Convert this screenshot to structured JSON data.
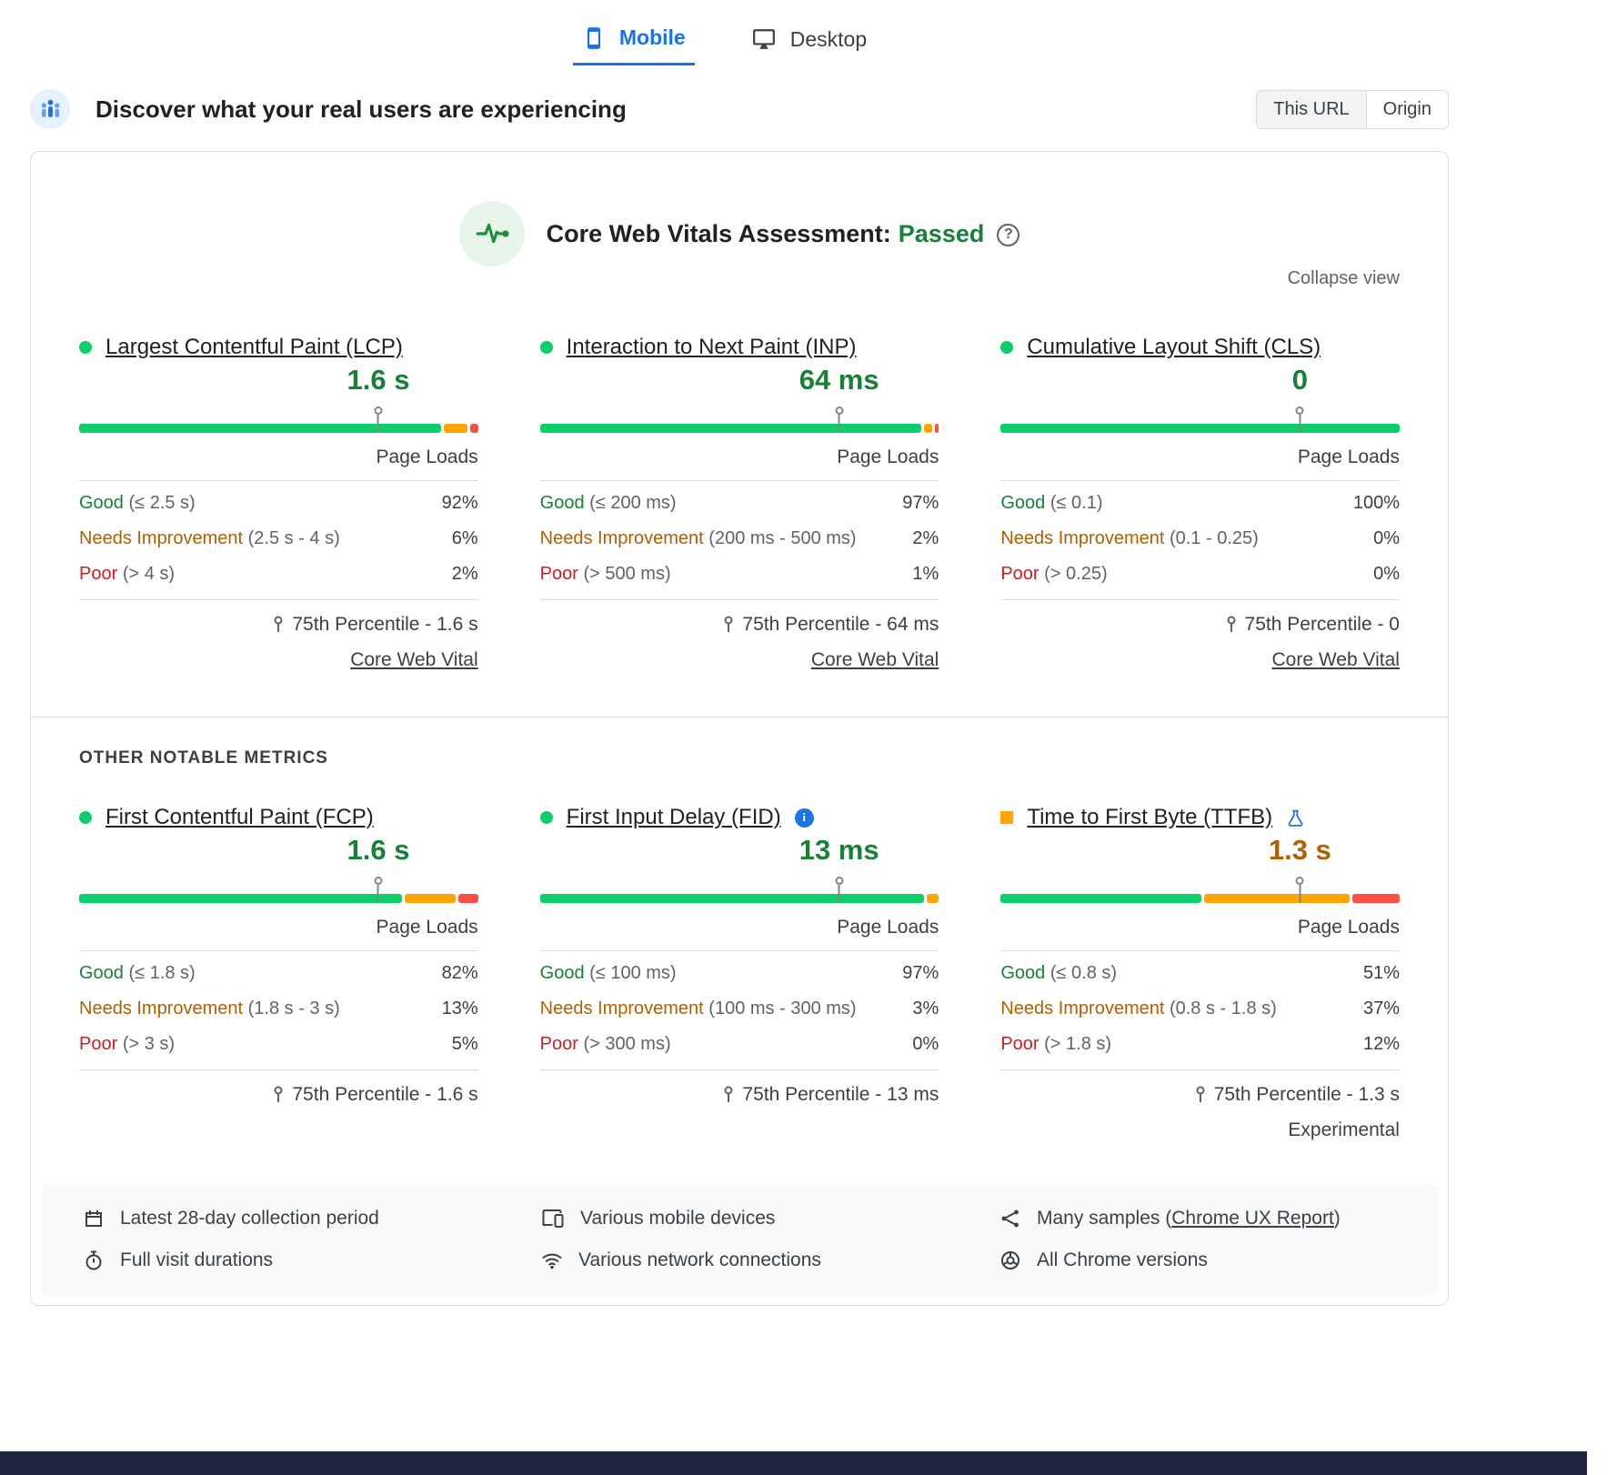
{
  "colors": {
    "accent_blue": "#1a73e8",
    "bar_good": "#0cce6b",
    "bar_needs_improvement": "#ffa400",
    "bar_poor": "#ff4e42",
    "text_good": "#188038",
    "text_needs_improvement": "#b06000",
    "text_poor": "#c5221f"
  },
  "device_tabs": [
    {
      "label": "Mobile",
      "active": true
    },
    {
      "label": "Desktop",
      "active": false
    }
  ],
  "header": {
    "title": "Discover what your real users are experiencing",
    "scope_toggle": [
      {
        "label": "This URL",
        "active": true
      },
      {
        "label": "Origin",
        "active": false
      }
    ]
  },
  "assessment": {
    "title": "Core Web Vitals Assessment:",
    "result": "Passed",
    "collapse_label": "Collapse view"
  },
  "labels": {
    "page_loads": "Page Loads",
    "core_web_vital": "Core Web Vital",
    "experimental": "Experimental",
    "other_metrics_title": "OTHER NOTABLE METRICS"
  },
  "metrics": [
    {
      "name": "Largest Contentful Paint (LCP)",
      "value": "1.6 s",
      "distribution": {
        "good": 92,
        "ni": 6,
        "poor": 2,
        "marker": 75
      },
      "rows": [
        {
          "label": "Good",
          "range": "(≤ 2.5 s)",
          "pct": "92%"
        },
        {
          "label": "Needs Improvement",
          "range": "(2.5 s - 4 s)",
          "pct": "6%"
        },
        {
          "label": "Poor",
          "range": "(> 4 s)",
          "pct": "2%"
        }
      ],
      "percentile": "75th Percentile - 1.6 s"
    },
    {
      "name": "Interaction to Next Paint (INP)",
      "value": "64 ms",
      "distribution": {
        "good": 97,
        "ni": 2,
        "poor": 1,
        "marker": 75
      },
      "rows": [
        {
          "label": "Good",
          "range": "(≤ 200 ms)",
          "pct": "97%"
        },
        {
          "label": "Needs Improvement",
          "range": "(200 ms - 500 ms)",
          "pct": "2%"
        },
        {
          "label": "Poor",
          "range": "(> 500 ms)",
          "pct": "1%"
        }
      ],
      "percentile": "75th Percentile - 64 ms"
    },
    {
      "name": "Cumulative Layout Shift (CLS)",
      "value": "0",
      "distribution": {
        "good": 100,
        "ni": 0,
        "poor": 0,
        "marker": 75
      },
      "rows": [
        {
          "label": "Good",
          "range": "(≤ 0.1)",
          "pct": "100%"
        },
        {
          "label": "Needs Improvement",
          "range": "(0.1 - 0.25)",
          "pct": "0%"
        },
        {
          "label": "Poor",
          "range": "(> 0.25)",
          "pct": "0%"
        }
      ],
      "percentile": "75th Percentile - 0"
    },
    {
      "name": "First Contentful Paint (FCP)",
      "value": "1.6 s",
      "distribution": {
        "good": 82,
        "ni": 13,
        "poor": 5,
        "marker": 75
      },
      "rows": [
        {
          "label": "Good",
          "range": "(≤ 1.8 s)",
          "pct": "82%"
        },
        {
          "label": "Needs Improvement",
          "range": "(1.8 s - 3 s)",
          "pct": "13%"
        },
        {
          "label": "Poor",
          "range": "(> 3 s)",
          "pct": "5%"
        }
      ],
      "percentile": "75th Percentile - 1.6 s"
    },
    {
      "name": "First Input Delay (FID)",
      "value": "13 ms",
      "distribution": {
        "good": 97,
        "ni": 3,
        "poor": 0,
        "marker": 75
      },
      "rows": [
        {
          "label": "Good",
          "range": "(≤ 100 ms)",
          "pct": "97%"
        },
        {
          "label": "Needs Improvement",
          "range": "(100 ms - 300 ms)",
          "pct": "3%"
        },
        {
          "label": "Poor",
          "range": "(> 300 ms)",
          "pct": "0%"
        }
      ],
      "percentile": "75th Percentile - 13 ms"
    },
    {
      "name": "Time to First Byte (TTFB)",
      "value": "1.3 s",
      "distribution": {
        "good": 51,
        "ni": 37,
        "poor": 12,
        "marker": 75
      },
      "rows": [
        {
          "label": "Good",
          "range": "(≤ 0.8 s)",
          "pct": "51%"
        },
        {
          "label": "Needs Improvement",
          "range": "(0.8 s - 1.8 s)",
          "pct": "37%"
        },
        {
          "label": "Poor",
          "range": "(> 1.8 s)",
          "pct": "12%"
        }
      ],
      "percentile": "75th Percentile - 1.3 s"
    }
  ],
  "footer": {
    "items": [
      {
        "label": "Latest 28-day collection period"
      },
      {
        "label": "Full visit durations"
      },
      {
        "label": "Various mobile devices"
      },
      {
        "label": "Various network connections"
      },
      {
        "prefix": "Many samples (",
        "link": "Chrome UX Report",
        "suffix": ")"
      },
      {
        "label": "All Chrome versions"
      }
    ]
  }
}
